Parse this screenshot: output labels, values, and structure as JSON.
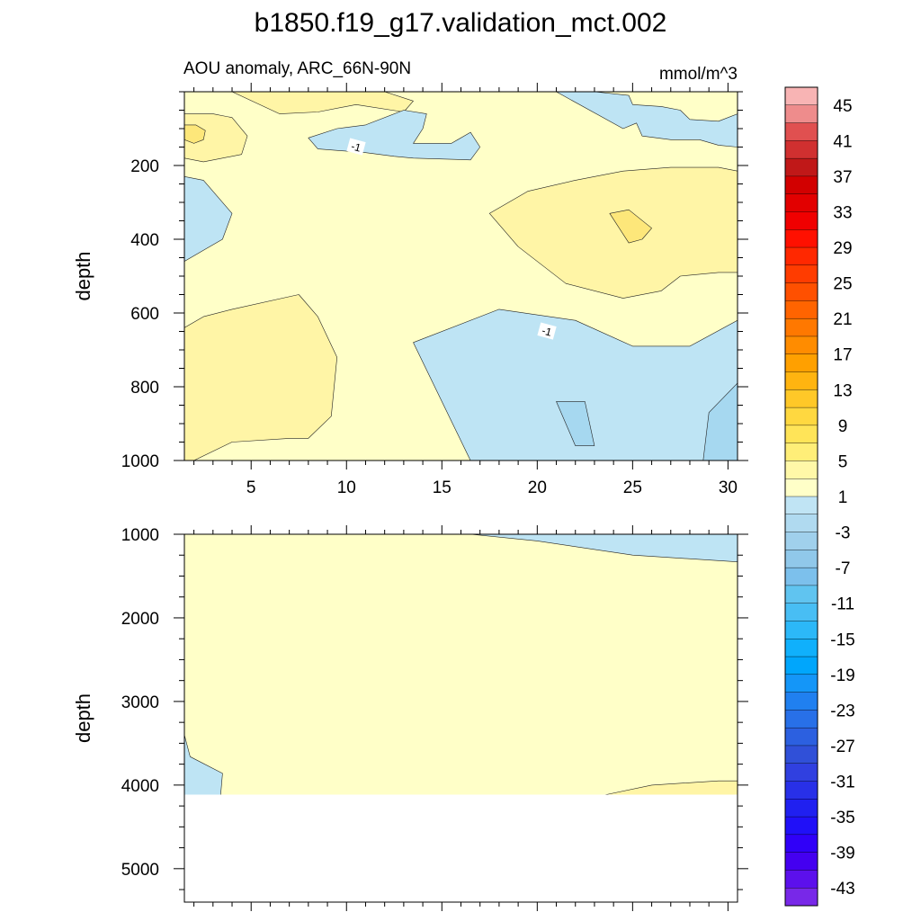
{
  "title": "b1850.f19_g17.validation_mct.002",
  "subtitle_left": "AOU anomaly, ARC_66N-90N",
  "subtitle_right": "mmol/m^3",
  "chart_data": [
    {
      "panel": "upper",
      "type": "contour",
      "xlabel": "",
      "ylabel": "depth",
      "xlim": [
        1.5,
        30.5
      ],
      "ylim": [
        1000,
        0
      ],
      "x_ticks": [
        5,
        10,
        15,
        20,
        25,
        30
      ],
      "x_tick_labels": [
        "5",
        "10",
        "15",
        "20",
        "25",
        "30"
      ],
      "y_ticks": [
        200,
        400,
        600,
        800,
        1000
      ],
      "y_tick_labels": [
        "200",
        "400",
        "600",
        "800",
        "1000"
      ],
      "contour_labels": [
        {
          "text": "-1",
          "x": 10.5,
          "depth": 150
        },
        {
          "text": "-1",
          "x": 20.5,
          "depth": 650
        }
      ],
      "regions": [
        {
          "name": "yellow-topleft",
          "level": 5,
          "x": [
            1.5,
            1.5,
            2.5,
            3.5,
            4.5,
            4.8,
            4.0,
            3.0,
            1.5
          ],
          "depth": [
            60,
            180,
            190,
            180,
            170,
            120,
            70,
            60,
            60
          ]
        },
        {
          "name": "yellow-tl-core",
          "level": 9,
          "x": [
            1.5,
            1.5,
            2.0,
            2.5,
            2.6,
            2.1,
            1.5
          ],
          "depth": [
            90,
            130,
            140,
            130,
            105,
            90,
            90
          ]
        },
        {
          "name": "yellow-top",
          "level": 5,
          "x": [
            4.0,
            8.0,
            12.0,
            13.5,
            13.0,
            10.5,
            8.5,
            6.5,
            4.0
          ],
          "depth": [
            0,
            0,
            0,
            25,
            55,
            35,
            55,
            60,
            0
          ]
        },
        {
          "name": "blue-left-mid",
          "level": -3,
          "x": [
            1.5,
            2.5,
            4.0,
            3.5,
            2.5,
            1.5
          ],
          "depth": [
            230,
            240,
            330,
            400,
            430,
            460
          ]
        },
        {
          "name": "blue-top-center",
          "level": -3,
          "x": [
            11.0,
            13.0,
            14.2,
            14.0,
            13.5,
            15.5,
            16.5,
            17.0,
            16.5,
            13.5,
            12.5,
            11.0,
            8.5,
            8.0,
            9.5,
            11.0
          ],
          "depth": [
            90,
            50,
            60,
            100,
            140,
            140,
            110,
            150,
            185,
            180,
            175,
            165,
            155,
            125,
            100,
            90
          ]
        },
        {
          "name": "blue-top-right",
          "level": -3,
          "x": [
            21.0,
            23.0,
            24.8,
            25.0,
            26.5,
            27.5,
            28.0,
            29.5,
            30.5,
            30.5,
            29.5,
            28.5,
            27.0,
            25.5,
            25.2,
            24.5,
            21.0
          ],
          "depth": [
            0,
            0,
            10,
            35,
            40,
            50,
            75,
            80,
            60,
            150,
            145,
            130,
            130,
            120,
            85,
            100,
            0
          ]
        },
        {
          "name": "yellow-right-upper",
          "level": 5,
          "x": [
            17.5,
            19.5,
            22.0,
            24.5,
            27.0,
            29.5,
            30.5,
            30.5,
            29.5,
            27.5,
            26.5,
            24.5,
            21.5,
            19.0,
            17.5
          ],
          "depth": [
            330,
            270,
            240,
            215,
            205,
            205,
            215,
            490,
            490,
            500,
            540,
            560,
            520,
            420,
            330
          ]
        },
        {
          "name": "yellow-right-core",
          "level": 9,
          "x": [
            23.8,
            24.8,
            26.0,
            25.5,
            24.8,
            23.8
          ],
          "depth": [
            330,
            320,
            370,
            400,
            410,
            330
          ]
        },
        {
          "name": "yellow-bottom-left",
          "level": 5,
          "x": [
            1.5,
            2.5,
            4.0,
            7.5,
            8.5,
            9.5,
            9.2,
            8.0,
            7.0,
            4.0,
            2.0,
            1.5
          ],
          "depth": [
            640,
            610,
            590,
            550,
            610,
            720,
            880,
            940,
            940,
            950,
            1000,
            1000
          ]
        },
        {
          "name": "blue-bottom-right",
          "level": -3,
          "x": [
            13.5,
            18.0,
            22.0,
            25.0,
            28.0,
            30.5,
            30.5,
            16.5,
            13.5
          ],
          "depth": [
            680,
            590,
            620,
            690,
            690,
            620,
            1000,
            1000,
            680
          ]
        },
        {
          "name": "blue-br-core1",
          "level": -7,
          "x": [
            21.0,
            22.5,
            23.0,
            22.0,
            21.0
          ],
          "depth": [
            840,
            840,
            960,
            960,
            840
          ]
        },
        {
          "name": "blue-br-core2",
          "level": -7,
          "x": [
            29.0,
            30.5,
            30.5,
            28.7,
            29.0
          ],
          "depth": [
            870,
            790,
            1000,
            1000,
            870
          ]
        }
      ]
    },
    {
      "panel": "lower",
      "type": "contour",
      "xlabel": "",
      "ylabel": "depth",
      "xlim": [
        1.5,
        30.5
      ],
      "ylim": [
        5400,
        1000
      ],
      "y_ticks": [
        1000,
        2000,
        3000,
        4000,
        5000
      ],
      "y_tick_labels": [
        "1000",
        "2000",
        "3000",
        "4000",
        "5000"
      ],
      "data_bottom_depth": 4120,
      "regions": [
        {
          "name": "blue-top-right",
          "level": -3,
          "x": [
            16.5,
            20.0,
            25.0,
            30.5,
            30.5,
            16.5
          ],
          "depth": [
            1000,
            1080,
            1250,
            1330,
            1000,
            1000
          ]
        },
        {
          "name": "blue-bottom-left",
          "level": -3,
          "x": [
            1.5,
            1.8,
            3.5,
            3.4,
            1.5
          ],
          "depth": [
            3400,
            3660,
            3860,
            4120,
            4120
          ]
        },
        {
          "name": "yellow-bottom-right",
          "level": 5,
          "x": [
            23.5,
            26.0,
            29.5,
            30.5,
            30.5,
            23.5
          ],
          "depth": [
            4120,
            4000,
            3950,
            3950,
            4120,
            4120
          ]
        }
      ]
    }
  ],
  "colorbar": {
    "labels": [
      "45",
      "41",
      "37",
      "33",
      "29",
      "25",
      "21",
      "17",
      "13",
      "9",
      "5",
      "1",
      "-3",
      "-7",
      "-11",
      "-15",
      "-19",
      "-23",
      "-27",
      "-31",
      "-35",
      "-39",
      "-43"
    ],
    "colors": [
      "#f8b4b4",
      "#ee8c8c",
      "#e05050",
      "#d03030",
      "#c01818",
      "#d20000",
      "#e20000",
      "#f00000",
      "#ff1000",
      "#ff2800",
      "#ff3c00",
      "#ff5000",
      "#ff6400",
      "#ff7800",
      "#ff8c00",
      "#ffa000",
      "#ffb410",
      "#ffc828",
      "#ffd840",
      "#ffe458",
      "#ffee78",
      "#fff8a8",
      "#ffffc8",
      "#c0e4f4",
      "#b0daf0",
      "#a0d0ec",
      "#90c8ea",
      "#7cc0ec",
      "#60c4f0",
      "#48bef4",
      "#2cb8f8",
      "#10b0fc",
      "#00a6fc",
      "#1496f8",
      "#2080f0",
      "#2870e8",
      "#2c60e0",
      "#3050d8",
      "#3040e0",
      "#2830e8",
      "#2020f0",
      "#2010f8",
      "#3000f8",
      "#4400f0",
      "#5c10ec",
      "#7828e8"
    ]
  }
}
